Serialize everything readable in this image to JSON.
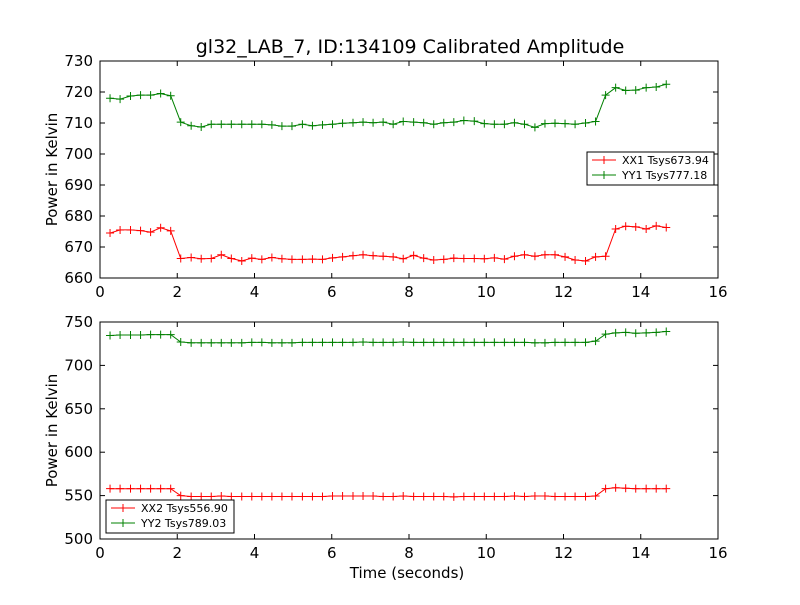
{
  "title": "gl32_LAB_7, ID:134109 Calibrated Amplitude",
  "colors": {
    "xx": "#ff0000",
    "yy": "#008000",
    "frame": "#000000",
    "background": "#ffffff"
  },
  "chart_data": [
    {
      "type": "line",
      "title": "gl32_LAB_7, ID:134109 Calibrated Amplitude",
      "xlabel": "",
      "ylabel": "Power in Kelvin",
      "xlim": [
        0,
        16
      ],
      "ylim": [
        660,
        730
      ],
      "xticks": [
        0,
        2,
        4,
        6,
        8,
        10,
        12,
        14,
        16
      ],
      "yticks": [
        660,
        670,
        680,
        690,
        700,
        710,
        720,
        730
      ],
      "grid": false,
      "legend_position": "right",
      "x": [
        0.26,
        0.52,
        0.79,
        1.05,
        1.31,
        1.57,
        1.83,
        2.09,
        2.36,
        2.62,
        2.88,
        3.14,
        3.4,
        3.67,
        3.93,
        4.19,
        4.45,
        4.71,
        4.97,
        5.24,
        5.5,
        5.76,
        6.02,
        6.28,
        6.55,
        6.81,
        7.07,
        7.33,
        7.59,
        7.85,
        8.12,
        8.38,
        8.64,
        8.9,
        9.16,
        9.42,
        9.69,
        9.95,
        10.21,
        10.47,
        10.73,
        10.99,
        11.26,
        11.52,
        11.78,
        12.04,
        12.3,
        12.57,
        12.83,
        13.09,
        13.35,
        13.61,
        13.87,
        14.14,
        14.4,
        14.66
      ],
      "series": [
        {
          "name": "XX1 Tsys673.94",
          "color": "#ff0000",
          "values": [
            674.5,
            675.5,
            675.5,
            675.3,
            674.8,
            676.2,
            675.2,
            666.3,
            666.6,
            666.2,
            666.3,
            667.5,
            666.3,
            665.5,
            666.4,
            666.0,
            666.6,
            666.2,
            666.0,
            666.0,
            666.1,
            666.0,
            666.5,
            666.8,
            667.2,
            667.5,
            667.2,
            667.0,
            666.8,
            666.2,
            667.3,
            666.4,
            665.8,
            666.0,
            666.4,
            666.3,
            666.3,
            666.2,
            666.5,
            666.1,
            667.0,
            667.5,
            667.0,
            667.5,
            667.5,
            666.8,
            665.8,
            665.5,
            666.8,
            667.0,
            675.8,
            676.7,
            676.5,
            675.8,
            676.8,
            676.3
          ]
        },
        {
          "name": "YY1 Tsys777.18",
          "color": "#008000",
          "values": [
            718.0,
            717.7,
            718.7,
            719.0,
            719.0,
            719.5,
            718.8,
            710.3,
            709.1,
            708.7,
            709.6,
            709.6,
            709.6,
            709.6,
            709.6,
            709.6,
            709.4,
            709.0,
            709.0,
            709.6,
            709.1,
            709.4,
            709.6,
            709.9,
            710.1,
            710.3,
            710.1,
            710.3,
            709.6,
            710.5,
            710.3,
            710.1,
            709.6,
            710.1,
            710.3,
            710.8,
            710.6,
            709.8,
            709.6,
            709.6,
            710.1,
            709.6,
            708.6,
            709.8,
            709.9,
            709.8,
            709.6,
            710.0,
            710.5,
            719.0,
            721.4,
            720.5,
            720.6,
            721.4,
            721.6,
            722.5
          ]
        }
      ]
    },
    {
      "type": "line",
      "title": "",
      "xlabel": "Time (seconds)",
      "ylabel": "Power in Kelvin",
      "xlim": [
        0,
        16
      ],
      "ylim": [
        500,
        750
      ],
      "xticks": [
        0,
        2,
        4,
        6,
        8,
        10,
        12,
        14,
        16
      ],
      "yticks": [
        500,
        550,
        600,
        650,
        700,
        750
      ],
      "grid": false,
      "legend_position": "lower-left",
      "x": [
        0.26,
        0.52,
        0.79,
        1.05,
        1.31,
        1.57,
        1.83,
        2.09,
        2.36,
        2.62,
        2.88,
        3.14,
        3.4,
        3.67,
        3.93,
        4.19,
        4.45,
        4.71,
        4.97,
        5.24,
        5.5,
        5.76,
        6.02,
        6.28,
        6.55,
        6.81,
        7.07,
        7.33,
        7.59,
        7.85,
        8.12,
        8.38,
        8.64,
        8.9,
        9.16,
        9.42,
        9.69,
        9.95,
        10.21,
        10.47,
        10.73,
        10.99,
        11.26,
        11.52,
        11.78,
        12.04,
        12.3,
        12.57,
        12.83,
        13.09,
        13.35,
        13.61,
        13.87,
        14.14,
        14.4,
        14.66
      ],
      "series": [
        {
          "name": "XX2 Tsys556.90",
          "color": "#ff0000",
          "values": [
            558.0,
            558.0,
            558.0,
            558.0,
            558.0,
            558.0,
            558.0,
            550.0,
            549.0,
            549.0,
            549.0,
            549.5,
            549.0,
            549.0,
            549.0,
            549.0,
            549.0,
            549.0,
            549.0,
            549.0,
            549.0,
            549.0,
            549.5,
            549.5,
            549.5,
            549.5,
            549.5,
            549.0,
            549.0,
            549.5,
            549.0,
            549.0,
            549.0,
            549.0,
            548.5,
            549.0,
            549.0,
            549.0,
            549.0,
            549.0,
            549.5,
            549.0,
            549.5,
            549.5,
            549.0,
            549.0,
            549.0,
            549.0,
            549.5,
            558.0,
            559.0,
            558.5,
            558.0,
            558.0,
            558.0,
            558.0
          ]
        },
        {
          "name": "YY2 Tsys789.03",
          "color": "#008000",
          "values": [
            734.5,
            735.0,
            735.0,
            735.0,
            735.5,
            735.5,
            735.5,
            727.0,
            726.0,
            726.0,
            726.0,
            726.0,
            726.0,
            726.0,
            726.5,
            726.5,
            726.0,
            726.0,
            726.0,
            726.5,
            726.5,
            726.5,
            726.5,
            726.5,
            726.5,
            727.0,
            726.5,
            726.5,
            726.5,
            727.0,
            726.5,
            726.5,
            726.5,
            726.5,
            726.5,
            726.5,
            726.5,
            726.5,
            726.5,
            726.5,
            726.5,
            726.5,
            726.0,
            726.0,
            726.5,
            726.5,
            726.5,
            726.5,
            728.0,
            736.0,
            737.5,
            738.0,
            737.0,
            737.5,
            738.0,
            739.0
          ]
        }
      ]
    }
  ]
}
